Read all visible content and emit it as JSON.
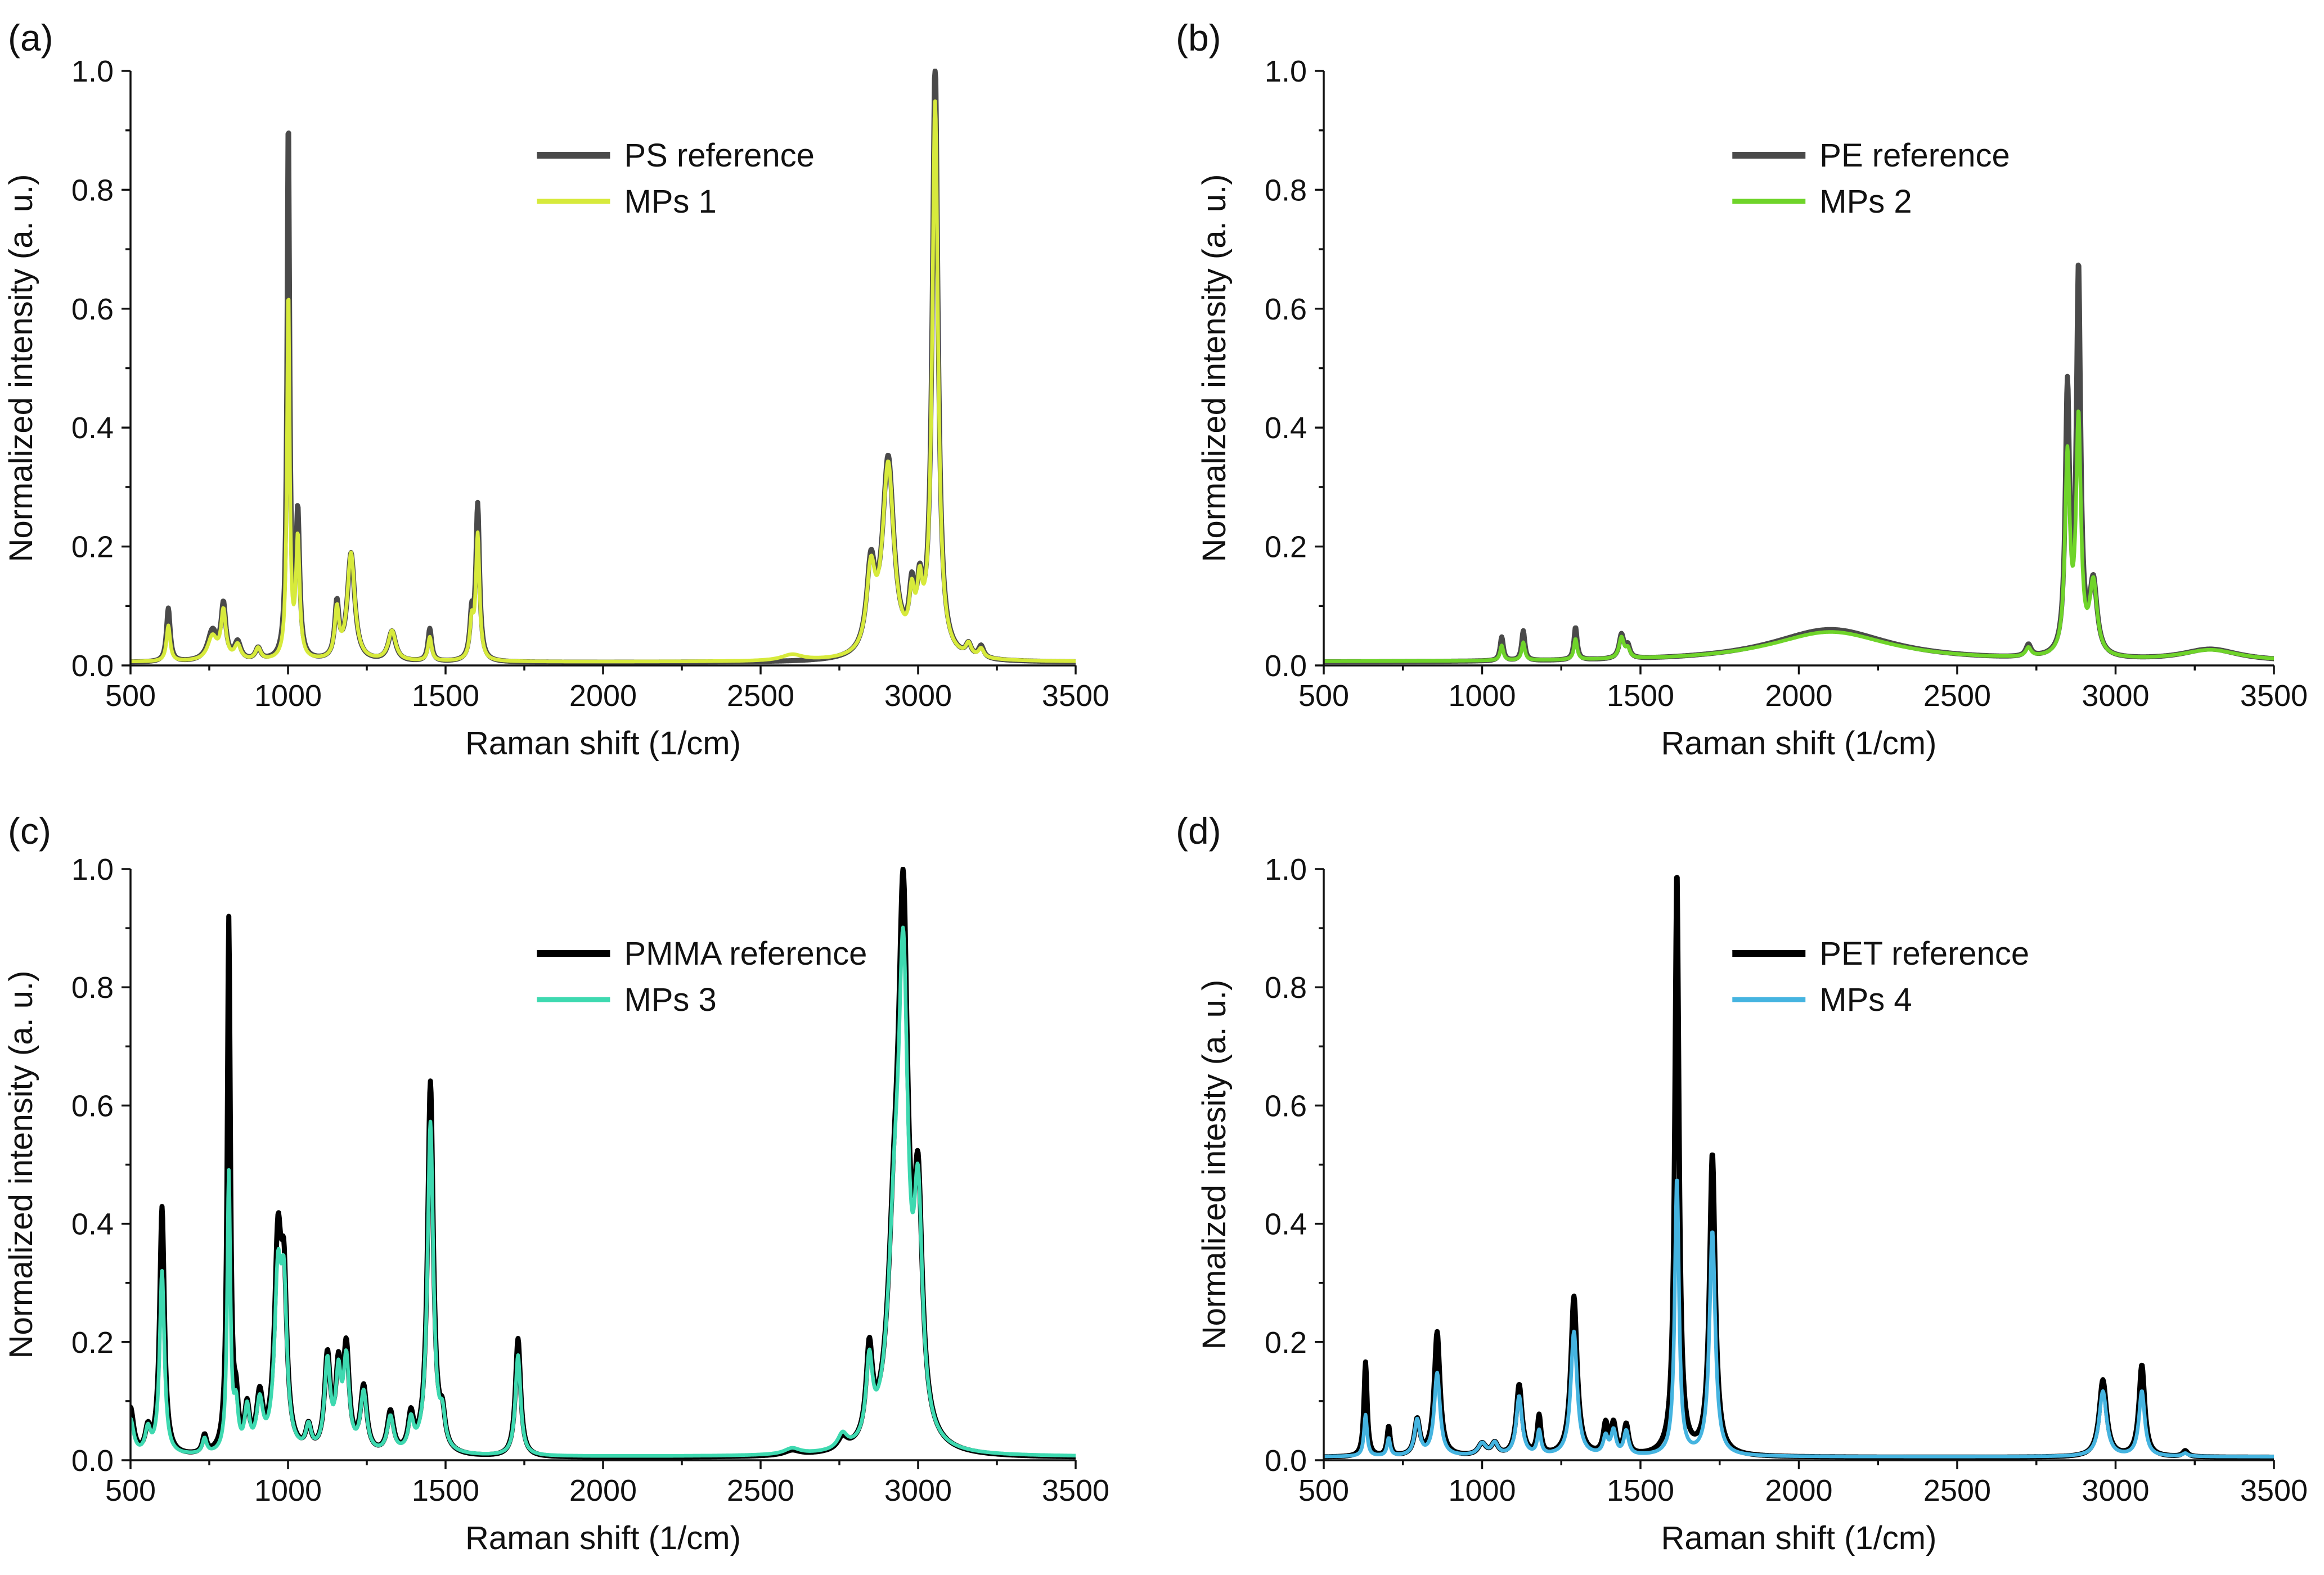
{
  "figure": {
    "panels": [
      {
        "id": "a",
        "label": "(a)",
        "legend": [
          "PS reference",
          "MPs 1"
        ],
        "colors": [
          "#4a4a4a",
          "#d7ea3c"
        ]
      },
      {
        "id": "b",
        "label": "(b)",
        "legend": [
          "PE reference",
          "MPs 2"
        ],
        "colors": [
          "#4a4a4a",
          "#6fd42a"
        ]
      },
      {
        "id": "c",
        "label": "(c)",
        "legend": [
          "PMMA reference",
          "MPs 3"
        ],
        "colors": [
          "#000000",
          "#3ed9b0"
        ]
      },
      {
        "id": "d",
        "label": "(d)",
        "legend": [
          "PET reference",
          "MPs 4"
        ],
        "colors": [
          "#000000",
          "#45b4e0"
        ]
      }
    ]
  },
  "chart_data": [
    {
      "type": "line",
      "panel": "(a)",
      "title": "",
      "xlabel": "Raman shift (1/cm)",
      "ylabel": "Normalized intensity (a. u.)",
      "xlim": [
        500,
        3500
      ],
      "ylim": [
        0,
        1.0
      ],
      "xticks": [
        "500",
        "1000",
        "1500",
        "2000",
        "2500",
        "3000",
        "3500"
      ],
      "yticks": [
        "0.0",
        "0.2",
        "0.4",
        "0.6",
        "0.8",
        "1.0"
      ],
      "legend_position": "top-center",
      "series": [
        {
          "name": "PS reference",
          "color": "#4a4a4a",
          "baseline": 0.005,
          "peaks": [
            [
              620,
              0.09,
              7
            ],
            [
              760,
              0.05,
              18
            ],
            [
              795,
              0.09,
              9
            ],
            [
              840,
              0.03,
              12
            ],
            [
              905,
              0.02,
              10
            ],
            [
              1001,
              0.91,
              5
            ],
            [
              1031,
              0.24,
              7
            ],
            [
              1155,
              0.09,
              8
            ],
            [
              1200,
              0.18,
              14
            ],
            [
              1330,
              0.05,
              14
            ],
            [
              1450,
              0.055,
              7
            ],
            [
              1583,
              0.07,
              7
            ],
            [
              1602,
              0.26,
              7
            ],
            [
              2850,
              0.14,
              16
            ],
            [
              2905,
              0.33,
              22
            ],
            [
              2980,
              0.09,
              10
            ],
            [
              3005,
              0.09,
              10
            ],
            [
              3054,
              1.0,
              11
            ],
            [
              3160,
              0.02,
              10
            ],
            [
              3200,
              0.02,
              10
            ]
          ]
        },
        {
          "name": "MPs 1",
          "color": "#d7ea3c",
          "baseline": 0.006,
          "peaks": [
            [
              620,
              0.06,
              7
            ],
            [
              760,
              0.04,
              18
            ],
            [
              795,
              0.08,
              9
            ],
            [
              840,
              0.025,
              12
            ],
            [
              905,
              0.02,
              10
            ],
            [
              1001,
              0.62,
              5
            ],
            [
              1031,
              0.2,
              7
            ],
            [
              1155,
              0.08,
              8
            ],
            [
              1200,
              0.18,
              14
            ],
            [
              1330,
              0.05,
              14
            ],
            [
              1450,
              0.04,
              7
            ],
            [
              1583,
              0.06,
              7
            ],
            [
              1602,
              0.21,
              7
            ],
            [
              2600,
              0.01,
              40
            ],
            [
              2850,
              0.13,
              16
            ],
            [
              2905,
              0.32,
              22
            ],
            [
              2980,
              0.08,
              10
            ],
            [
              3005,
              0.09,
              10
            ],
            [
              3054,
              0.93,
              11
            ],
            [
              3160,
              0.02,
              10
            ],
            [
              3200,
              0.015,
              10
            ]
          ]
        }
      ]
    },
    {
      "type": "line",
      "panel": "(b)",
      "title": "",
      "xlabel": "Raman shift (1/cm)",
      "ylabel": "Normalized intensity (a. u.)",
      "xlim": [
        500,
        3500
      ],
      "ylim": [
        0,
        1.0
      ],
      "xticks": [
        "500",
        "1000",
        "1500",
        "2000",
        "2500",
        "3000",
        "3500"
      ],
      "yticks": [
        "0.0",
        "0.2",
        "0.4",
        "0.6",
        "0.8",
        "1.0"
      ],
      "legend_position": "top-center",
      "series": [
        {
          "name": "PE reference",
          "color": "#4a4a4a",
          "baseline": 0.005,
          "peaks": [
            [
              1062,
              0.04,
              6
            ],
            [
              1130,
              0.05,
              6
            ],
            [
              1295,
              0.055,
              6
            ],
            [
              1440,
              0.04,
              9
            ],
            [
              1460,
              0.02,
              8
            ],
            [
              2100,
              0.055,
              230
            ],
            [
              2725,
              0.02,
              10
            ],
            [
              2848,
              0.44,
              8
            ],
            [
              2883,
              0.64,
              8
            ],
            [
              2930,
              0.12,
              14
            ],
            [
              3300,
              0.02,
              110
            ]
          ]
        },
        {
          "name": "MPs 2",
          "color": "#6fd42a",
          "baseline": 0.006,
          "peaks": [
            [
              1062,
              0.025,
              6
            ],
            [
              1130,
              0.03,
              6
            ],
            [
              1295,
              0.035,
              6
            ],
            [
              1440,
              0.035,
              9
            ],
            [
              1460,
              0.015,
              8
            ],
            [
              2100,
              0.05,
              230
            ],
            [
              2725,
              0.015,
              10
            ],
            [
              2848,
              0.33,
              9
            ],
            [
              2883,
              0.39,
              9
            ],
            [
              2930,
              0.12,
              14
            ],
            [
              3300,
              0.018,
              110
            ]
          ]
        }
      ]
    },
    {
      "type": "line",
      "panel": "(c)",
      "title": "",
      "xlabel": "Raman shift (1/cm)",
      "ylabel": "Normalized intensity (a. u.)",
      "xlim": [
        500,
        3500
      ],
      "ylim": [
        0,
        1.0
      ],
      "xticks": [
        "500",
        "1000",
        "1500",
        "2000",
        "2500",
        "3000",
        "3500"
      ],
      "yticks": [
        "0.0",
        "0.2",
        "0.4",
        "0.6",
        "0.8",
        "1.0"
      ],
      "legend_position": "top-center",
      "series": [
        {
          "name": "PMMA reference",
          "color": "#000000",
          "baseline": 0.004,
          "peaks": [
            [
              500,
              0.08,
              12
            ],
            [
              555,
              0.04,
              10
            ],
            [
              600,
              0.42,
              9
            ],
            [
              735,
              0.03,
              8
            ],
            [
              812,
              0.9,
              6
            ],
            [
              835,
              0.07,
              8
            ],
            [
              870,
              0.07,
              9
            ],
            [
              910,
              0.09,
              12
            ],
            [
              968,
              0.34,
              13
            ],
            [
              987,
              0.25,
              11
            ],
            [
              1065,
              0.04,
              10
            ],
            [
              1125,
              0.16,
              11
            ],
            [
              1160,
              0.13,
              10
            ],
            [
              1185,
              0.17,
              11
            ],
            [
              1240,
              0.11,
              12
            ],
            [
              1325,
              0.07,
              12
            ],
            [
              1390,
              0.06,
              10
            ],
            [
              1452,
              0.63,
              11
            ],
            [
              1490,
              0.05,
              10
            ],
            [
              1730,
              0.2,
              10
            ],
            [
              2600,
              0.008,
              30
            ],
            [
              2760,
              0.02,
              18
            ],
            [
              2845,
              0.15,
              12
            ],
            [
              2925,
              0.3,
              25
            ],
            [
              2953,
              0.82,
              18
            ],
            [
              3000,
              0.38,
              16
            ]
          ]
        },
        {
          "name": "MPs 3",
          "color": "#3ed9b0",
          "baseline": 0.006,
          "peaks": [
            [
              500,
              0.06,
              12
            ],
            [
              555,
              0.04,
              10
            ],
            [
              600,
              0.31,
              9
            ],
            [
              735,
              0.025,
              8
            ],
            [
              812,
              0.47,
              6
            ],
            [
              835,
              0.07,
              8
            ],
            [
              870,
              0.07,
              9
            ],
            [
              910,
              0.08,
              12
            ],
            [
              968,
              0.28,
              13
            ],
            [
              987,
              0.24,
              11
            ],
            [
              1065,
              0.04,
              10
            ],
            [
              1125,
              0.15,
              11
            ],
            [
              1160,
              0.12,
              10
            ],
            [
              1185,
              0.15,
              11
            ],
            [
              1240,
              0.1,
              12
            ],
            [
              1325,
              0.06,
              12
            ],
            [
              1390,
              0.05,
              10
            ],
            [
              1452,
              0.56,
              11
            ],
            [
              1490,
              0.05,
              10
            ],
            [
              1730,
              0.17,
              10
            ],
            [
              2600,
              0.01,
              30
            ],
            [
              2760,
              0.025,
              18
            ],
            [
              2845,
              0.13,
              12
            ],
            [
              2925,
              0.3,
              25
            ],
            [
              2953,
              0.72,
              18
            ],
            [
              3000,
              0.37,
              16
            ]
          ]
        }
      ]
    },
    {
      "type": "line",
      "panel": "(d)",
      "title": "",
      "xlabel": "Raman shift (1/cm)",
      "ylabel": "Normalized intesity (a. u.)",
      "xlim": [
        500,
        3500
      ],
      "ylim": [
        0,
        1.0
      ],
      "xticks": [
        "500",
        "1000",
        "1500",
        "2000",
        "2500",
        "3000",
        "3500"
      ],
      "yticks": [
        "0.0",
        "0.2",
        "0.4",
        "0.6",
        "0.8",
        "1.0"
      ],
      "legend_position": "top-center",
      "series": [
        {
          "name": "PET reference",
          "color": "#000000",
          "baseline": 0.005,
          "peaks": [
            [
              632,
              0.16,
              6
            ],
            [
              705,
              0.05,
              6
            ],
            [
              795,
              0.06,
              10
            ],
            [
              858,
              0.21,
              11
            ],
            [
              1000,
              0.02,
              15
            ],
            [
              1040,
              0.02,
              12
            ],
            [
              1117,
              0.12,
              11
            ],
            [
              1180,
              0.065,
              7
            ],
            [
              1290,
              0.27,
              12
            ],
            [
              1390,
              0.05,
              9
            ],
            [
              1415,
              0.05,
              9
            ],
            [
              1455,
              0.05,
              9
            ],
            [
              1615,
              0.99,
              8
            ],
            [
              1727,
              0.51,
              11
            ],
            [
              2960,
              0.13,
              14
            ],
            [
              3083,
              0.155,
              11
            ],
            [
              3220,
              0.01,
              10
            ]
          ]
        },
        {
          "name": "MPs 4",
          "color": "#45b4e0",
          "baseline": 0.006,
          "peaks": [
            [
              632,
              0.07,
              6
            ],
            [
              705,
              0.03,
              6
            ],
            [
              795,
              0.06,
              10
            ],
            [
              858,
              0.14,
              11
            ],
            [
              1000,
              0.02,
              15
            ],
            [
              1040,
              0.02,
              12
            ],
            [
              1117,
              0.1,
              11
            ],
            [
              1180,
              0.04,
              7
            ],
            [
              1290,
              0.21,
              12
            ],
            [
              1390,
              0.03,
              9
            ],
            [
              1415,
              0.04,
              9
            ],
            [
              1455,
              0.04,
              9
            ],
            [
              1615,
              0.47,
              8
            ],
            [
              1727,
              0.38,
              11
            ],
            [
              2960,
              0.11,
              14
            ],
            [
              3083,
              0.11,
              11
            ],
            [
              3220,
              0.005,
              10
            ]
          ]
        }
      ]
    }
  ]
}
